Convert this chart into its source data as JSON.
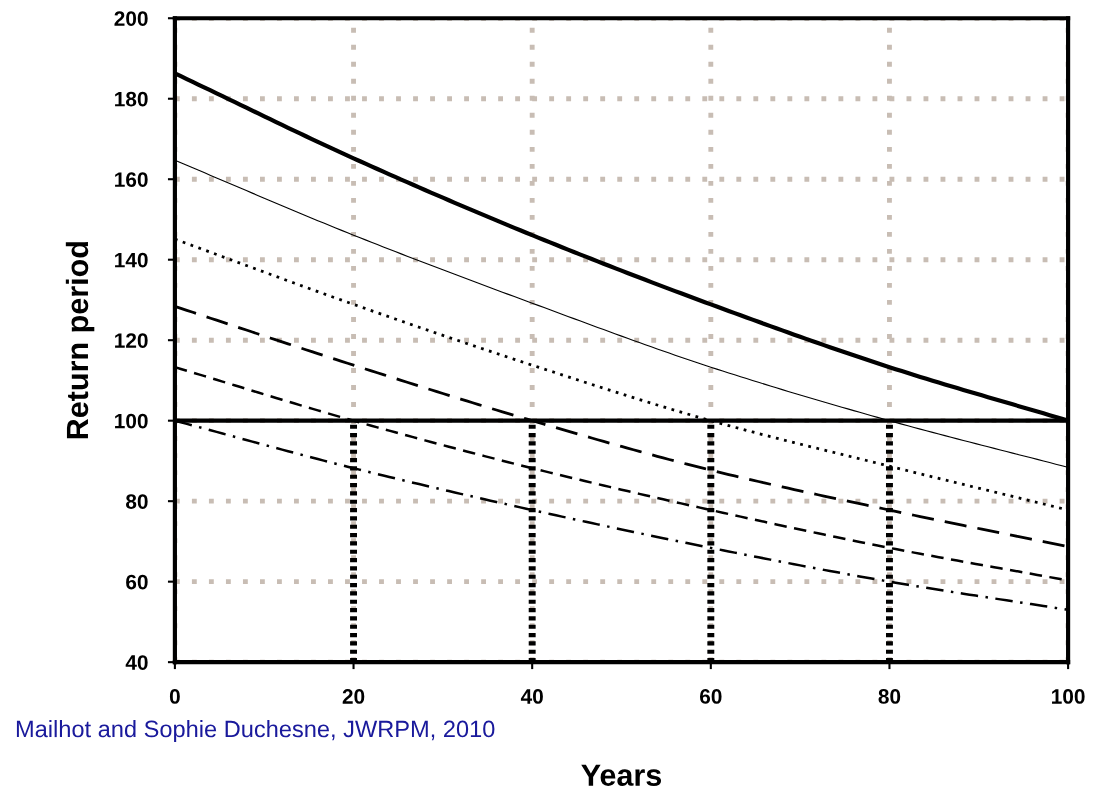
{
  "chart_data": {
    "type": "line",
    "xlabel": "Years",
    "ylabel": "Return period",
    "x": [
      0,
      20,
      40,
      60,
      80,
      100
    ],
    "series": [
      {
        "color": "#000000",
        "line_style": "solid",
        "values": [
          186.3,
          165.2,
          146.1,
          128.9,
          113.3,
          100
        ]
      },
      {
        "color": "#000000",
        "line_style": "solid",
        "values": [
          164.7,
          146.1,
          129.2,
          113.3,
          100,
          88.4
        ]
      },
      {
        "color": "#000000",
        "line_style": "dotted",
        "values": [
          145.1,
          128.9,
          113.8,
          100,
          88.7,
          77.8
        ]
      },
      {
        "color": "#000000",
        "line_style": "longdash",
        "values": [
          128.4,
          113.8,
          100,
          87.7,
          77.8,
          68.7
        ]
      },
      {
        "color": "#000000",
        "line_style": "dashed",
        "values": [
          113.3,
          100,
          88.2,
          77.8,
          68.4,
          60.3
        ]
      },
      {
        "color": "#000000",
        "line_style": "dashdot",
        "values": [
          100,
          88.2,
          77.8,
          68.4,
          60,
          53
        ]
      },
      {
        "color": "#000000",
        "line_style": "dotted",
        "x": [
          20,
          20
        ],
        "values": [
          40,
          100
        ]
      },
      {
        "color": "#000000",
        "line_style": "dotted",
        "x": [
          40,
          40
        ],
        "values": [
          40,
          100
        ]
      },
      {
        "color": "#000000",
        "line_style": "dotted",
        "x": [
          60,
          60
        ],
        "values": [
          40,
          100
        ]
      },
      {
        "color": "#000000",
        "line_style": "dotted",
        "x": [
          80,
          80
        ],
        "values": [
          40,
          100
        ]
      }
    ],
    "ref_lines": [
      {
        "axis": "y",
        "value": 100,
        "color": "#000000"
      }
    ],
    "xlim": [
      0,
      100
    ],
    "xticks": [
      0,
      20,
      40,
      60,
      80,
      100
    ],
    "ylim": [
      40,
      200
    ],
    "yticks": [
      40,
      60,
      80,
      100,
      120,
      140,
      160,
      180,
      200
    ],
    "grid": true,
    "legend": false,
    "marker": "none",
    "annotations": [
      "Mailhot and Sophie Duchesne, JWRPM, 2010"
    ]
  }
}
